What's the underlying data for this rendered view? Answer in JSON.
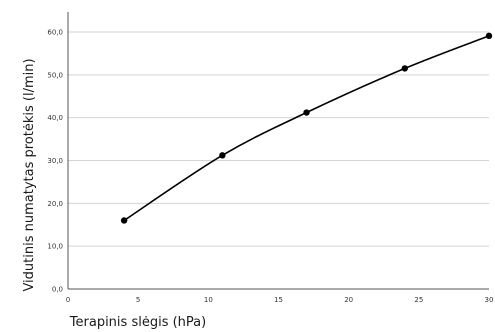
{
  "chart_data": {
    "type": "line",
    "title": "",
    "xlabel": "Terapinis slėgis (hPa)",
    "ylabel": "Vidutinis numatytas protėkis (l/min)",
    "xlim": [
      0,
      30
    ],
    "ylim": [
      0,
      60
    ],
    "x_ticks": [
      "0",
      "5",
      "10",
      "15",
      "20",
      "25",
      "30"
    ],
    "y_ticks": [
      "0,0",
      "10,0",
      "20,0",
      "30,0",
      "40,0",
      "50,0",
      "60,0"
    ],
    "grid": "horizontal",
    "legend": "none",
    "series": [
      {
        "color": "#000000",
        "x": [
          4,
          11,
          17,
          24,
          30
        ],
        "y": [
          16.0,
          31.2,
          41.2,
          51.5,
          59.1
        ]
      }
    ]
  }
}
